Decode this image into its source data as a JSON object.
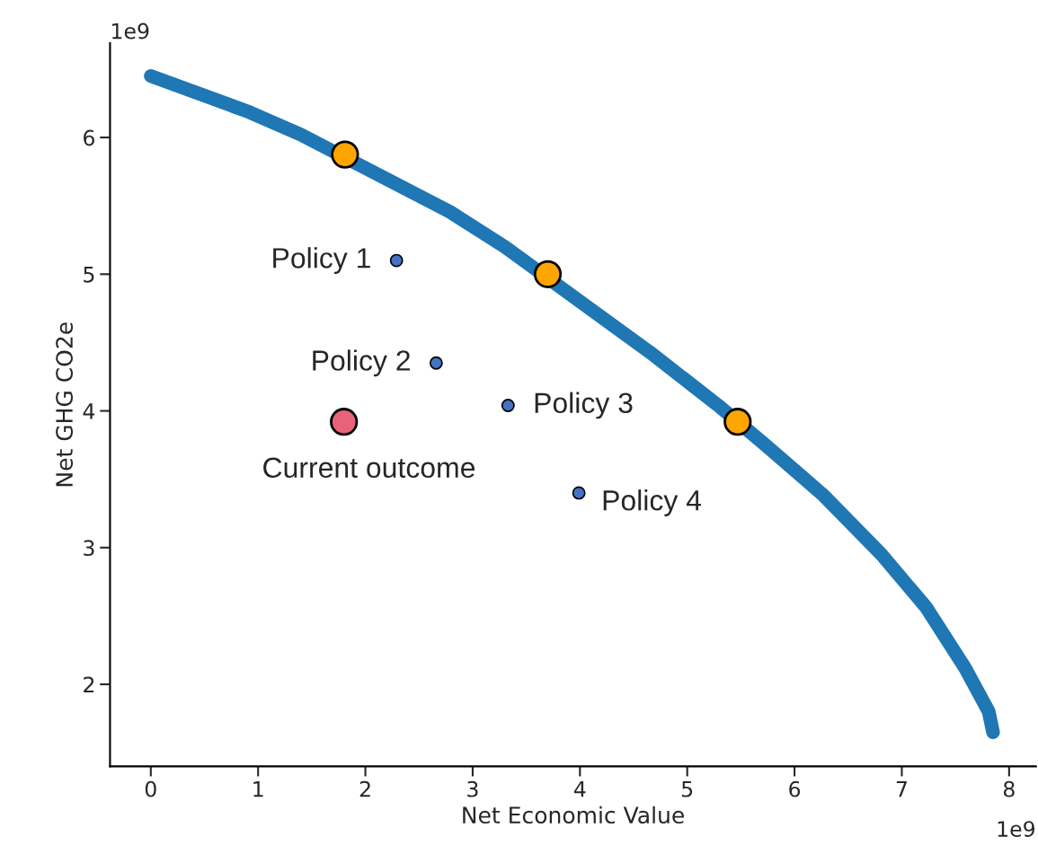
{
  "chart_data": {
    "type": "scatter",
    "xlabel": "Net Economic Value",
    "ylabel": "Net GHG CO2e",
    "xlim": [
      -0.38,
      8.25
    ],
    "ylim": [
      1.4,
      6.69
    ],
    "xticks": [
      0,
      1,
      2,
      3,
      4,
      5,
      6,
      7,
      8
    ],
    "yticks": [
      2,
      3,
      4,
      5,
      6
    ],
    "grid": false,
    "legend": false,
    "series": [
      {
        "type": "line",
        "color": "#1f77b4",
        "marker": "none",
        "line_style": "solid",
        "x": [
          0,
          0.92,
          1.4,
          2.79,
          3.3,
          4.65,
          5.28,
          5.7,
          6.26,
          6.81,
          7.23,
          7.59,
          7.81,
          7.85
        ],
        "values": [
          6.45,
          6.185,
          6.02,
          5.455,
          5.2,
          4.43,
          4.045,
          3.77,
          3.39,
          2.95,
          2.56,
          2.12,
          1.8,
          1.65
        ]
      },
      {
        "color": "#ffa500",
        "marker": "circle",
        "x": [
          1.81,
          3.7,
          5.47
        ],
        "values": [
          5.875,
          5.0,
          3.92
        ]
      },
      {
        "color": "#e8637a",
        "marker": "circle",
        "x": [
          1.8
        ],
        "values": [
          3.92
        ]
      },
      {
        "color": "#4472c4",
        "marker": "circle",
        "x": [
          2.29,
          2.66,
          3.33,
          3.99
        ],
        "values": [
          5.1,
          4.35,
          4.04,
          3.4
        ]
      }
    ],
    "annotations": [
      {
        "text": "Policy 1",
        "x": 2.29,
        "y": 5.1
      },
      {
        "text": "Policy 2",
        "x": 2.66,
        "y": 4.35
      },
      {
        "text": "Policy 3",
        "x": 3.33,
        "y": 4.04
      },
      {
        "text": "Policy 4",
        "x": 3.99,
        "y": 3.4
      },
      {
        "text": "Current outcome",
        "x": 1.8,
        "y": 3.92
      },
      "1e9",
      "1e9"
    ]
  }
}
